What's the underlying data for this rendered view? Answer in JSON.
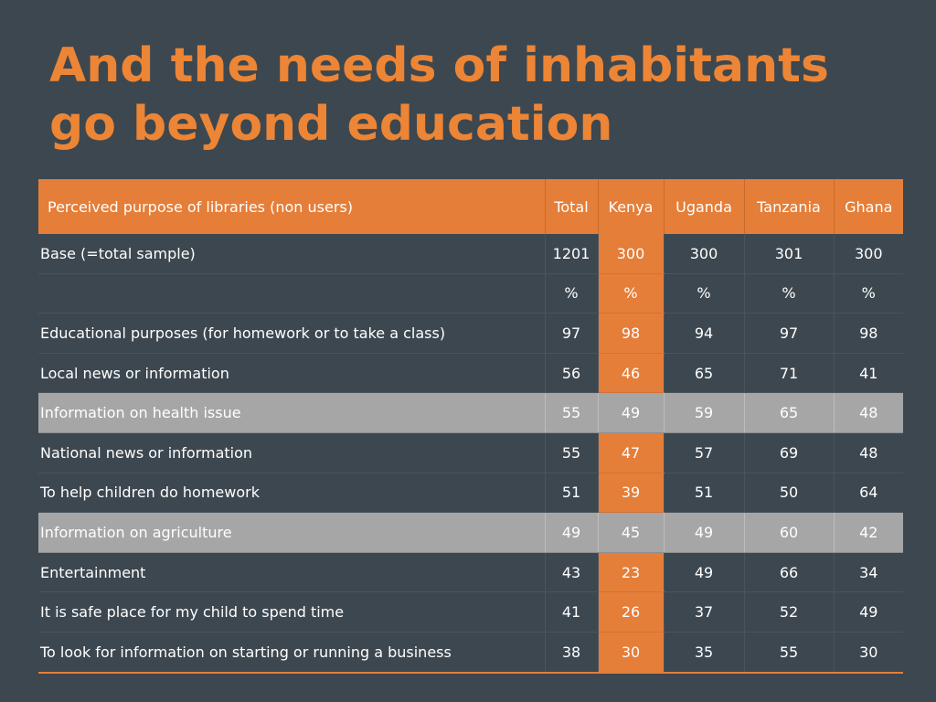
{
  "title": {
    "line1": "And the needs of inhabitants",
    "line2": "go beyond education"
  },
  "colors": {
    "background": "#3d474f",
    "accent": "#e57e38",
    "highlight_row": "#a6a6a6",
    "text": "#ffffff"
  },
  "table": {
    "headers": [
      "Perceived purpose of libraries (non users)",
      "Total",
      "Kenya",
      "Uganda",
      "Tanzania",
      "Ghana"
    ],
    "rows": [
      {
        "label": "Base (=total sample)",
        "values": [
          "1201",
          "300",
          "300",
          "301",
          "300"
        ],
        "highlight": false
      },
      {
        "label": "",
        "values": [
          "%",
          "%",
          "%",
          "%",
          "%"
        ],
        "highlight": false
      },
      {
        "label": "Educational purposes (for homework or to take a class)",
        "values": [
          "97",
          "98",
          "94",
          "97",
          "98"
        ],
        "highlight": false
      },
      {
        "label": "Local news or information",
        "values": [
          "56",
          "46",
          "65",
          "71",
          "41"
        ],
        "highlight": false
      },
      {
        "label": "Information on health issue",
        "values": [
          "55",
          "49",
          "59",
          "65",
          "48"
        ],
        "highlight": true
      },
      {
        "label": "National news or information",
        "values": [
          "55",
          "47",
          "57",
          "69",
          "48"
        ],
        "highlight": false
      },
      {
        "label": "To help children do homework",
        "values": [
          "51",
          "39",
          "51",
          "50",
          "64"
        ],
        "highlight": false
      },
      {
        "label": "Information on agriculture",
        "values": [
          "49",
          "45",
          "49",
          "60",
          "42"
        ],
        "highlight": true
      },
      {
        "label": "Entertainment",
        "values": [
          "43",
          "23",
          "49",
          "66",
          "34"
        ],
        "highlight": false
      },
      {
        "label": "It is safe place for my child to spend time",
        "values": [
          "41",
          "26",
          "37",
          "52",
          "49"
        ],
        "highlight": false
      },
      {
        "label": "To look for information on starting or running a business",
        "values": [
          "38",
          "30",
          "35",
          "55",
          "30"
        ],
        "highlight": false
      }
    ]
  }
}
